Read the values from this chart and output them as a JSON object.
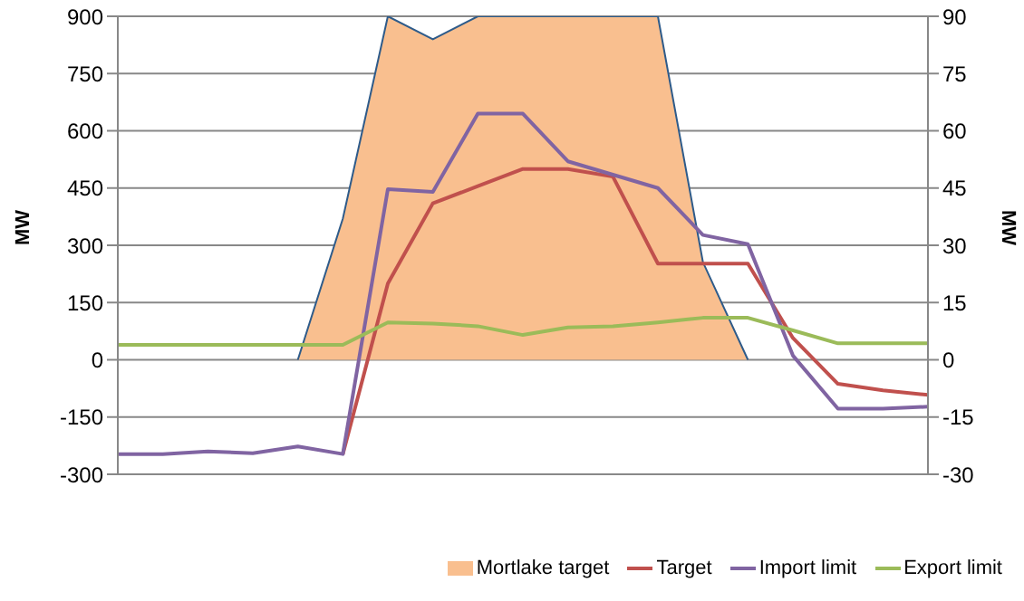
{
  "chart_data": {
    "type": "line",
    "ylabel": "MW",
    "y2label": "MW",
    "categories": [
      null,
      null,
      null,
      null,
      null,
      null,
      null,
      null,
      null,
      null,
      null,
      null,
      null,
      null,
      null,
      null,
      null,
      null,
      null
    ],
    "series": [
      {
        "name": "Mortlake target",
        "type": "area",
        "color": "#f9bf8f",
        "values": [
          null,
          null,
          null,
          null,
          0,
          370,
          900,
          840,
          900,
          900,
          900,
          900,
          900,
          256,
          0,
          null,
          null,
          null,
          null
        ]
      },
      {
        "name": "Target",
        "color": "#c0504d",
        "values": [
          null,
          null,
          null,
          null,
          null,
          -247,
          200,
          410,
          455,
          500,
          500,
          480,
          252,
          252,
          252,
          57,
          -63,
          -80,
          -92
        ]
      },
      {
        "name": "Import limit",
        "color": "#8064a2",
        "values": [
          -247,
          -247,
          -240,
          -245,
          -227,
          -247,
          447,
          440,
          645,
          645,
          520,
          485,
          450,
          327,
          303,
          11,
          -128,
          -128,
          -123
        ]
      },
      {
        "name": "Export limit",
        "color": "#9bbb59",
        "values": [
          39,
          39,
          39,
          39,
          39,
          39,
          98,
          95,
          88,
          65,
          85,
          88,
          98,
          110,
          110,
          77,
          43,
          43,
          43
        ]
      }
    ],
    "ylim": [
      -300,
      900
    ],
    "yticks": [
      -300,
      -150,
      0,
      150,
      300,
      450,
      600,
      750,
      900
    ],
    "y2lim": [
      -30,
      90
    ],
    "y2ticks": [
      -30,
      -15,
      0,
      15,
      30,
      45,
      60,
      75,
      90
    ],
    "grid": "y",
    "legend": "bottom right",
    "marker": "none"
  }
}
